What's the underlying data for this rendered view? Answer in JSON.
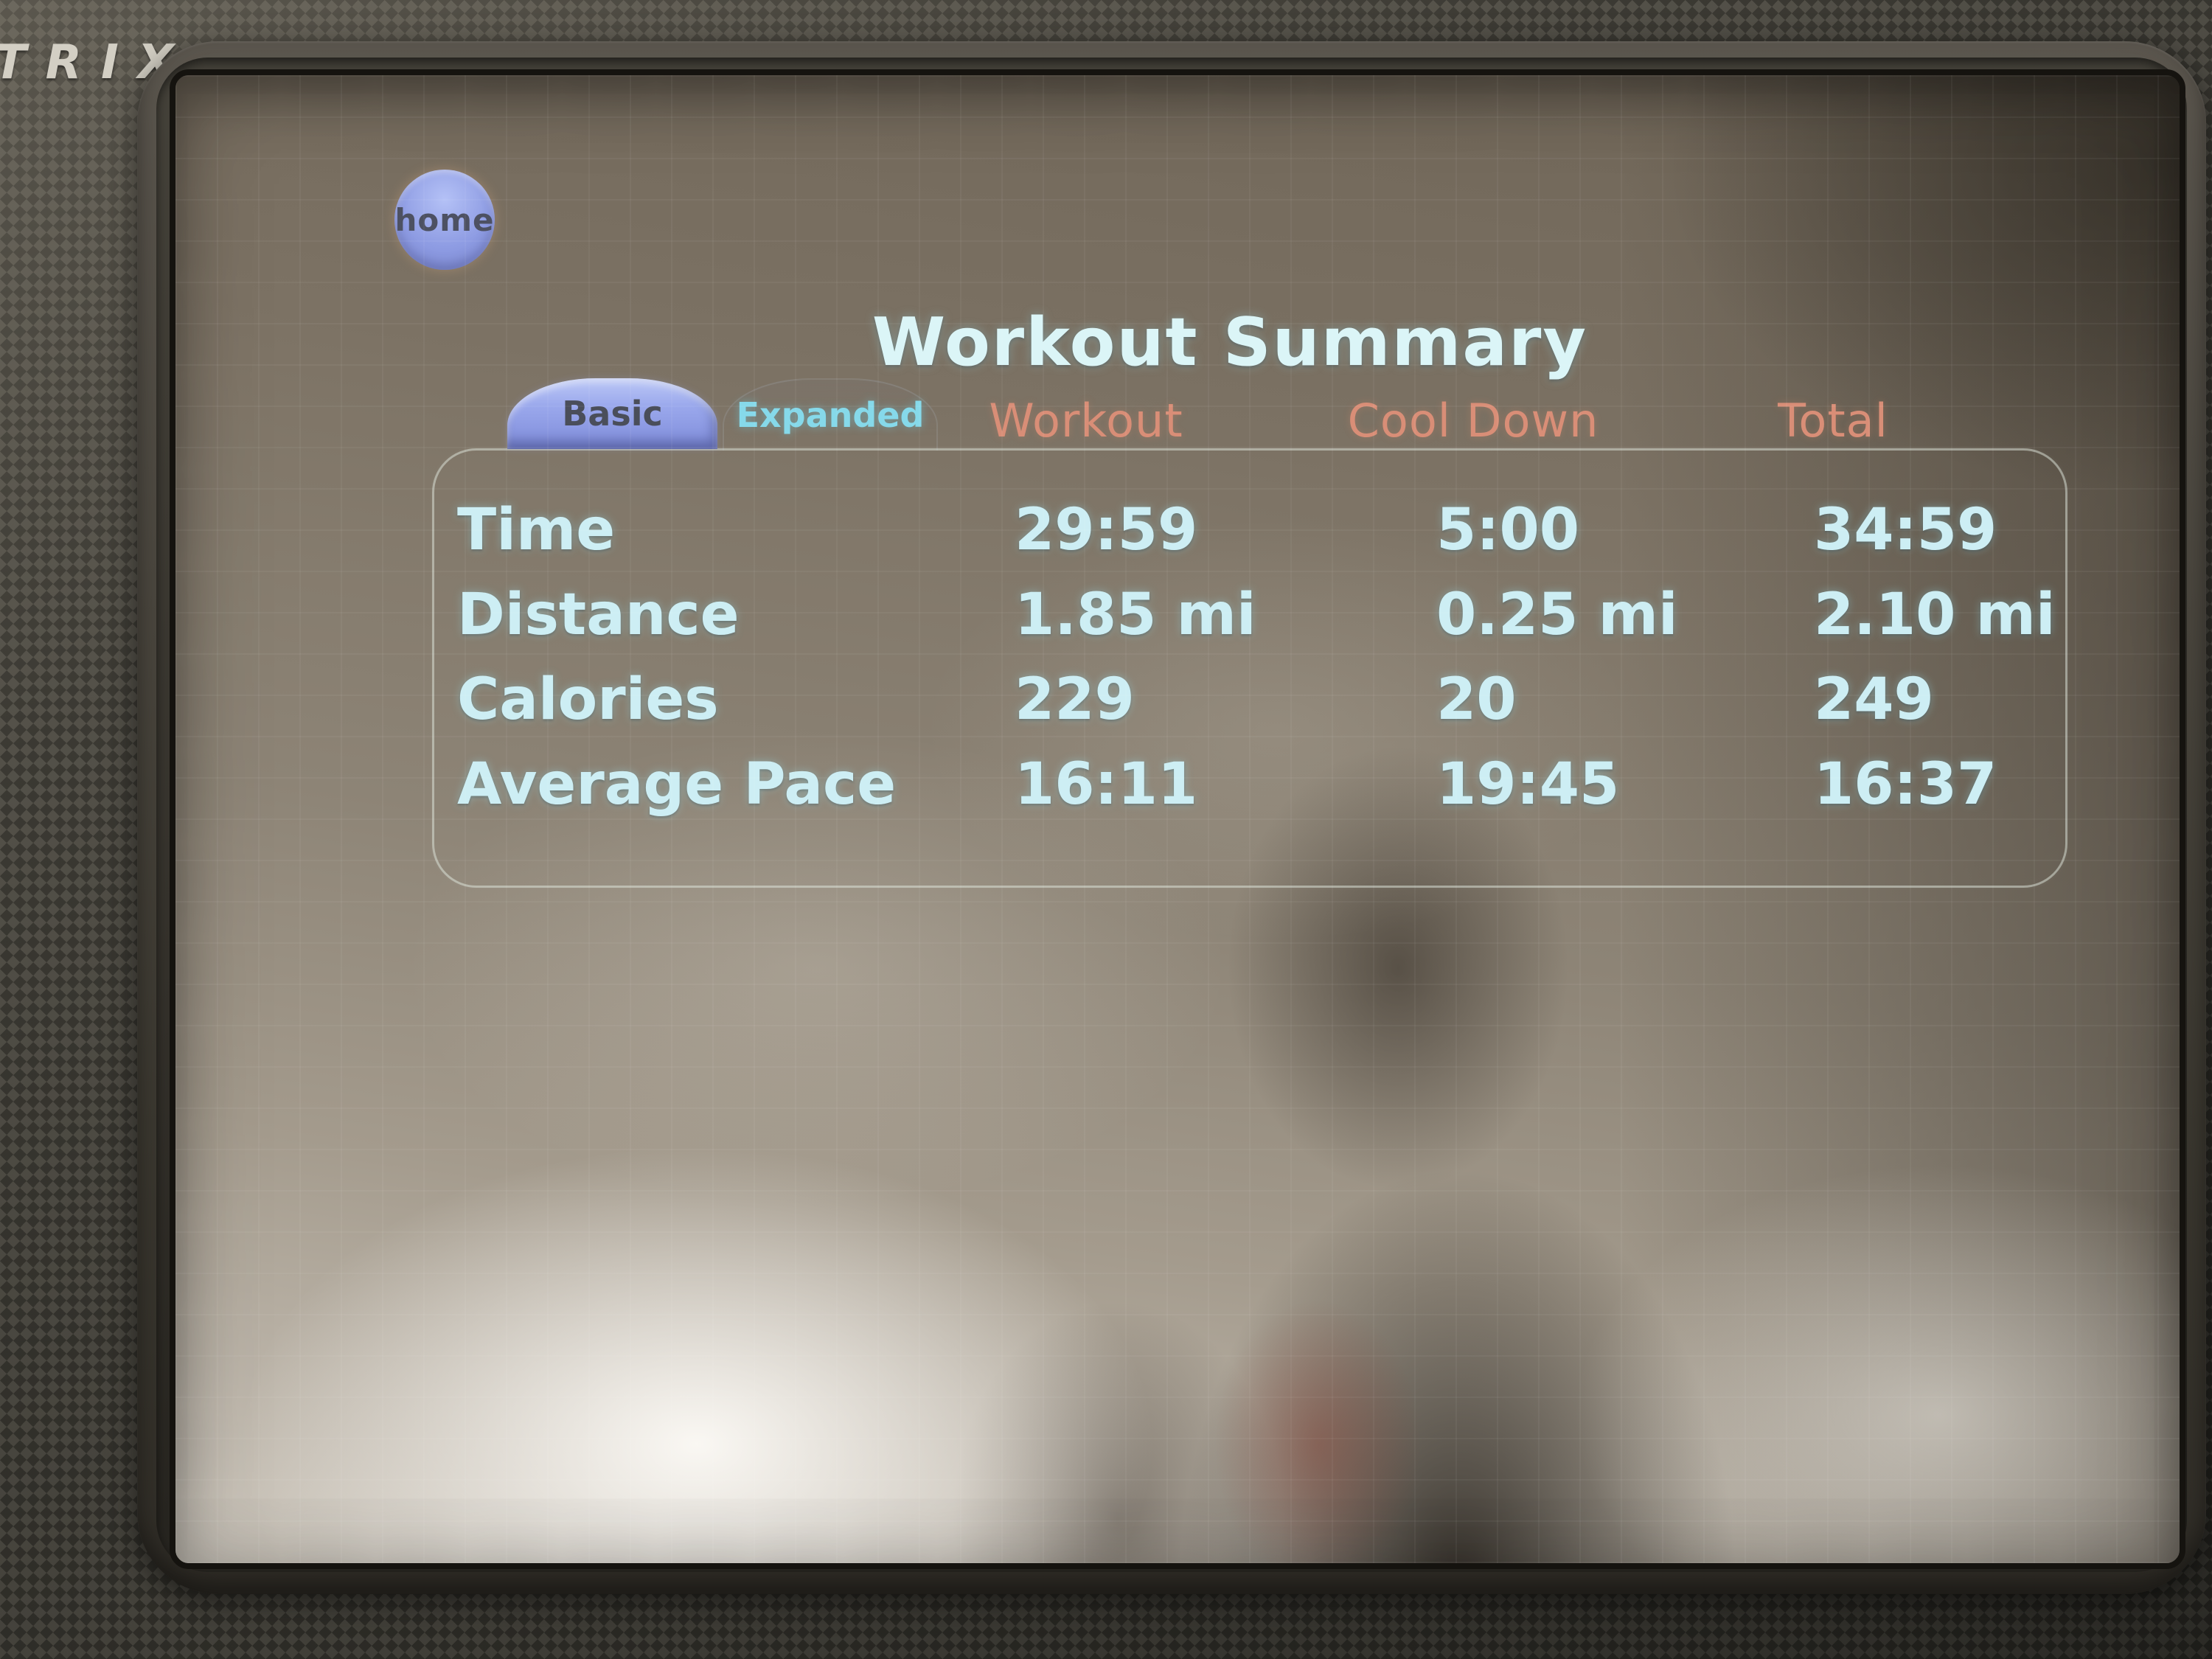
{
  "brand": {
    "logo_text": "TRIX"
  },
  "screen": {
    "home_button_label": "home",
    "title": "Workout Summary",
    "tabs": {
      "basic": {
        "label": "Basic",
        "active": true
      },
      "expanded": {
        "label": "Expanded",
        "active": false
      }
    },
    "columns": {
      "workout": "Workout",
      "cool_down": "Cool Down",
      "total": "Total"
    },
    "rows": [
      {
        "label": "Time",
        "workout": "29:59",
        "cool_down": "5:00",
        "total": "34:59"
      },
      {
        "label": "Distance",
        "workout": "1.85 mi",
        "cool_down": "0.25 mi",
        "total": "2.10 mi"
      },
      {
        "label": "Calories",
        "workout": "229",
        "cool_down": "20",
        "total": "249"
      },
      {
        "label": "Average Pace",
        "workout": "16:11",
        "cool_down": "19:45",
        "total": "16:37"
      }
    ],
    "colors": {
      "value_text": "#cdeef4",
      "header_text": "#d98e77",
      "tab_active_fill": "#94a2e6",
      "tab_inactive_text": "#86d9ea",
      "home_button_fill": "#8c9ae4"
    }
  }
}
